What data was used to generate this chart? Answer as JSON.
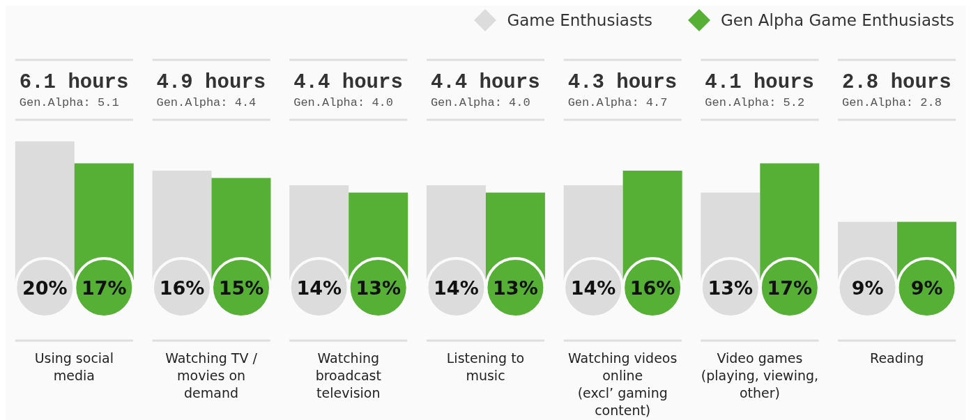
{
  "chart_data": {
    "type": "bar",
    "categories": [
      "Using social media",
      "Watching TV / movies on demand",
      "Watching broadcast television",
      "Listening to music",
      "Watching videos online (excl’ gaming content)",
      "Video games (playing, viewing, other)",
      "Reading"
    ],
    "series": [
      {
        "name": "Game Enthusiasts",
        "color": "#dcdcdc",
        "values": [
          20,
          16,
          14,
          14,
          14,
          13,
          9
        ],
        "value_labels": [
          "20%",
          "16%",
          "14%",
          "14%",
          "14%",
          "13%",
          "9%"
        ]
      },
      {
        "name": "Gen Alpha Game Enthusiasts",
        "color": "#56b035",
        "values": [
          17,
          15,
          13,
          13,
          16,
          17,
          9
        ],
        "value_labels": [
          "17%",
          "15%",
          "13%",
          "13%",
          "16%",
          "17%",
          "9%"
        ]
      }
    ],
    "legend": "top right",
    "grid": false,
    "annotations": [
      "6.1 hours",
      "Gen.Alpha: 5.1",
      "4.9 hours",
      "Gen.Alpha: 4.4",
      "4.4 hours",
      "Gen.Alpha: 4.0",
      "4.4 hours",
      "Gen.Alpha: 4.0",
      "4.3 hours",
      "Gen.Alpha: 4.7",
      "4.1 hours",
      "Gen.Alpha: 5.2",
      "2.8 hours",
      "Gen.Alpha: 2.8"
    ]
  }
}
